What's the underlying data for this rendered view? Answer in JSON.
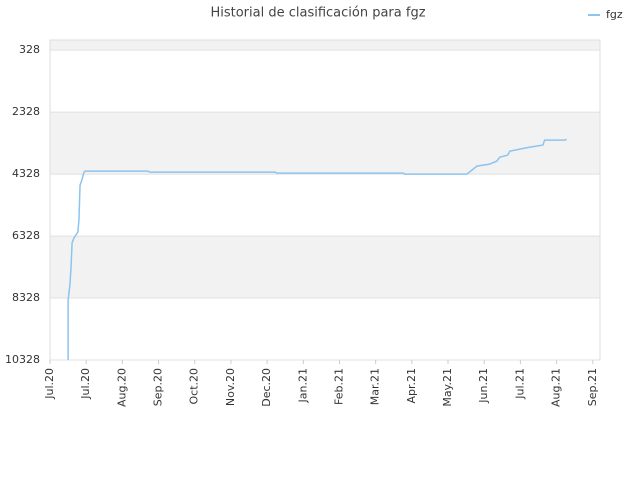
{
  "chart_data": {
    "type": "line",
    "title": "Historial de clasificación para fgz",
    "x": [
      0.5,
      0.5,
      0.55,
      0.58,
      0.61,
      0.66,
      0.77,
      0.8,
      0.83,
      0.88,
      0.94,
      0.97,
      2.71,
      2.76,
      6.22,
      6.27,
      9.75,
      9.81,
      11.52,
      11.66,
      11.8,
      12.15,
      12.35,
      12.43,
      12.65,
      12.71,
      12.98,
      13.26,
      13.62,
      13.67,
      14.23,
      14.28
    ],
    "series": [
      {
        "name": "fgz",
        "color": "#8cc4f0",
        "values": [
          10328,
          8393,
          7909,
          7360,
          6554,
          6393,
          6199,
          5812,
          4683,
          4522,
          4264,
          4231,
          4231,
          4264,
          4264,
          4296,
          4296,
          4328,
          4328,
          4199,
          4070,
          4006,
          3909,
          3780,
          3715,
          3586,
          3522,
          3457,
          3393,
          3231,
          3231,
          3199
        ]
      }
    ],
    "ylim": [
      0,
      10328
    ],
    "y_inverted": true,
    "yticks": [
      328,
      2328,
      4328,
      6328,
      8328,
      10328
    ],
    "xlim": [
      0,
      15.2
    ],
    "xticks": [
      {
        "value": 0,
        "label": "Jul.20"
      },
      {
        "value": 1,
        "label": "Jul.20"
      },
      {
        "value": 2,
        "label": "Aug.20"
      },
      {
        "value": 3,
        "label": "Sep.20"
      },
      {
        "value": 4,
        "label": "Oct.20"
      },
      {
        "value": 5,
        "label": "Nov.20"
      },
      {
        "value": 6,
        "label": "Dec.20"
      },
      {
        "value": 7,
        "label": "Jan.21"
      },
      {
        "value": 8,
        "label": "Feb.21"
      },
      {
        "value": 9,
        "label": "Mar.21"
      },
      {
        "value": 10,
        "label": "Apr.21"
      },
      {
        "value": 11,
        "label": "May.21"
      },
      {
        "value": 12,
        "label": "Jun.21"
      },
      {
        "value": 13,
        "label": "Jul.21"
      },
      {
        "value": 14,
        "label": "Aug.21"
      },
      {
        "value": 15,
        "label": "Sep.21"
      }
    ],
    "grid": true,
    "band_color": "#f2f2f2",
    "legend": "top-right"
  }
}
